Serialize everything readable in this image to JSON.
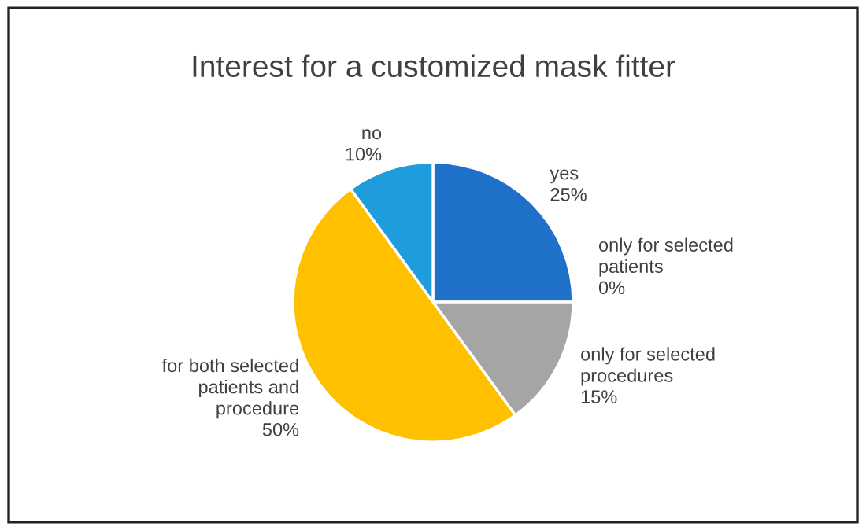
{
  "chart_data": {
    "type": "pie",
    "title": "Interest for a customized mask fitter",
    "categories": [
      "yes",
      "only for selected\npatients",
      "only for selected\nprocedures",
      "for both selected\npatients and\nprocedure",
      "no"
    ],
    "values": [
      25,
      0,
      15,
      50,
      10
    ],
    "colors": [
      "#1f70c8",
      "#ed7d31",
      "#a5a5a5",
      "#ffc000",
      "#1e9cdc"
    ],
    "value_labels": [
      "25%",
      "0%",
      "15%",
      "50%",
      "10%"
    ]
  }
}
